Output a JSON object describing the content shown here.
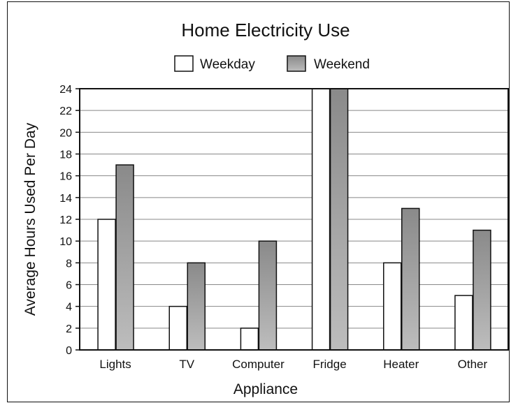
{
  "chart_data": {
    "type": "bar",
    "title": "Home Electricity Use",
    "xlabel": "Appliance",
    "ylabel": "Average Hours Used Per Day",
    "categories": [
      "Lights",
      "TV",
      "Computer",
      "Fridge",
      "Heater",
      "Other"
    ],
    "series": [
      {
        "name": "Weekday",
        "values": [
          12,
          4,
          2,
          24,
          8,
          5
        ],
        "color": "#ffffff"
      },
      {
        "name": "Weekend",
        "values": [
          17,
          8,
          10,
          24,
          13,
          11
        ],
        "color": "#9a9a9a"
      }
    ],
    "ylim": [
      0,
      24
    ],
    "yticks": [
      0,
      2,
      4,
      6,
      8,
      10,
      12,
      14,
      16,
      18,
      20,
      22,
      24
    ],
    "grid": true,
    "legend": "top-center"
  }
}
